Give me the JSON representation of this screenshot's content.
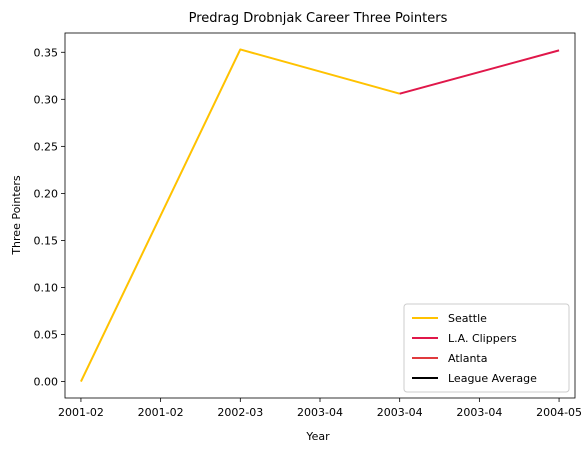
{
  "chart_data": {
    "type": "line",
    "title": "Predrag Drobnjak Career Three Pointers",
    "xlabel": "Year",
    "ylabel": "Three Pointers",
    "x_tick_labels": [
      "2001-02",
      "2001-02",
      "2002-03",
      "2003-04",
      "2003-04",
      "2003-04",
      "2004-05"
    ],
    "x_tick_values": [
      2001,
      2001.5,
      2002,
      2002.5,
      2003,
      2003.5,
      2004
    ],
    "xlim": [
      2000.9,
      2004.1
    ],
    "ylim": [
      -0.0175,
      0.3705
    ],
    "y_ticks": [
      0.0,
      0.05,
      0.1,
      0.15,
      0.2,
      0.25,
      0.3,
      0.35
    ],
    "y_tick_labels": [
      "0.00",
      "0.05",
      "0.10",
      "0.15",
      "0.20",
      "0.25",
      "0.30",
      "0.35"
    ],
    "grid": false,
    "legend_position": "lower-right",
    "series": [
      {
        "name": "Seattle",
        "color": "#FFC200",
        "x": [
          2001,
          2002,
          2003
        ],
        "y": [
          0.0,
          0.353,
          0.306
        ]
      },
      {
        "name": "L.A. Clippers",
        "color": "#E0174A",
        "x": [
          2003,
          2004
        ],
        "y": [
          0.306,
          0.352
        ]
      },
      {
        "name": "Atlanta",
        "color": "#E03A3E",
        "x": [],
        "y": []
      },
      {
        "name": "League Average",
        "color": "#000000",
        "x": [],
        "y": []
      }
    ]
  }
}
